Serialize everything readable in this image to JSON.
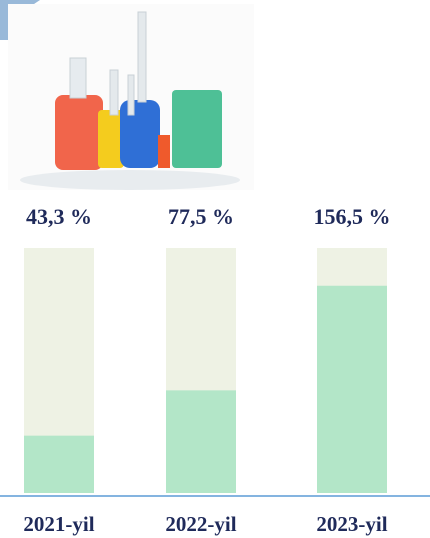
{
  "chart_data": {
    "type": "bar",
    "categories": [
      "2021-yil",
      "2022-yil",
      "2023-yil"
    ],
    "values": [
      43.3,
      77.5,
      156.5
    ],
    "value_labels": [
      "43,3 %",
      "77,5 %",
      "156,5 %"
    ],
    "ylim": [
      0,
      185
    ],
    "color": "#b3e6c8",
    "track_color": "#eef2e4"
  }
}
